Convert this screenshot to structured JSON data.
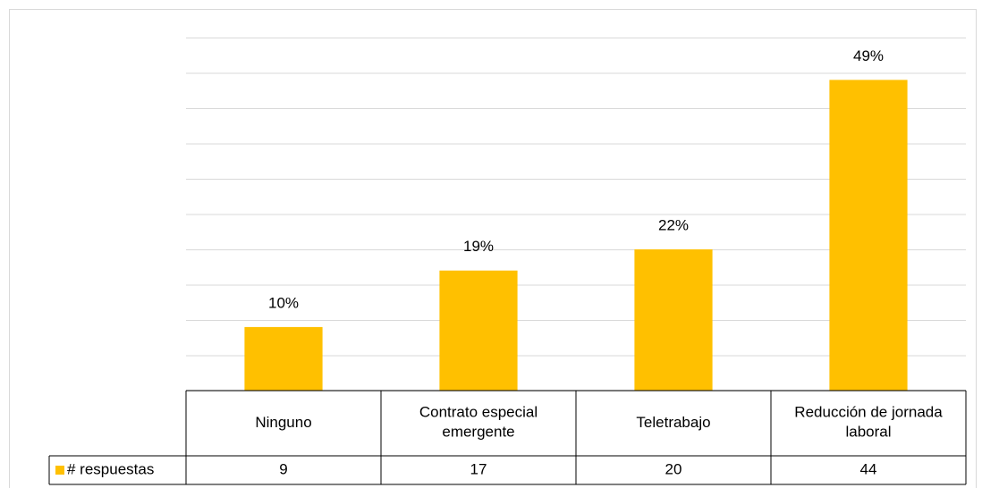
{
  "chart_data": {
    "type": "bar",
    "categories": [
      "Ninguno",
      "Contrato especial emergente",
      "Teletrabajo",
      "Reducción de jornada laboral"
    ],
    "series": [
      {
        "name": "# respuestas",
        "color": "#ffc000",
        "values": [
          9,
          17,
          20,
          44
        ]
      }
    ],
    "data_labels": [
      "10%",
      "19%",
      "22%",
      "49%"
    ],
    "ylim": [
      0,
      50
    ],
    "yticks": [
      0,
      5,
      10,
      15,
      20,
      25,
      30,
      35,
      40,
      45,
      50
    ],
    "grid": true,
    "data_table": true
  }
}
